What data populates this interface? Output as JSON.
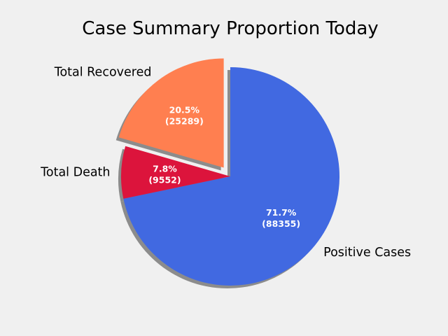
{
  "chart_data": {
    "type": "pie",
    "title": "Case Summary Proportion Today",
    "start_angle_deg": 90,
    "counterclock": false,
    "shadow": true,
    "slices": [
      {
        "label": "Positive Cases",
        "value": 88355,
        "percent_label": "71.7%",
        "value_label": "(88355)",
        "color": "#4169e1",
        "explode": 0
      },
      {
        "label": "Total Death",
        "value": 9552,
        "percent_label": "7.8%",
        "value_label": "(9552)",
        "color": "#dc143c",
        "explode": 0
      },
      {
        "label": "Total Recovered",
        "value": 25289,
        "percent_label": "20.5%",
        "value_label": "(25289)",
        "color": "#ff7f50",
        "explode": 0.1
      }
    ]
  }
}
